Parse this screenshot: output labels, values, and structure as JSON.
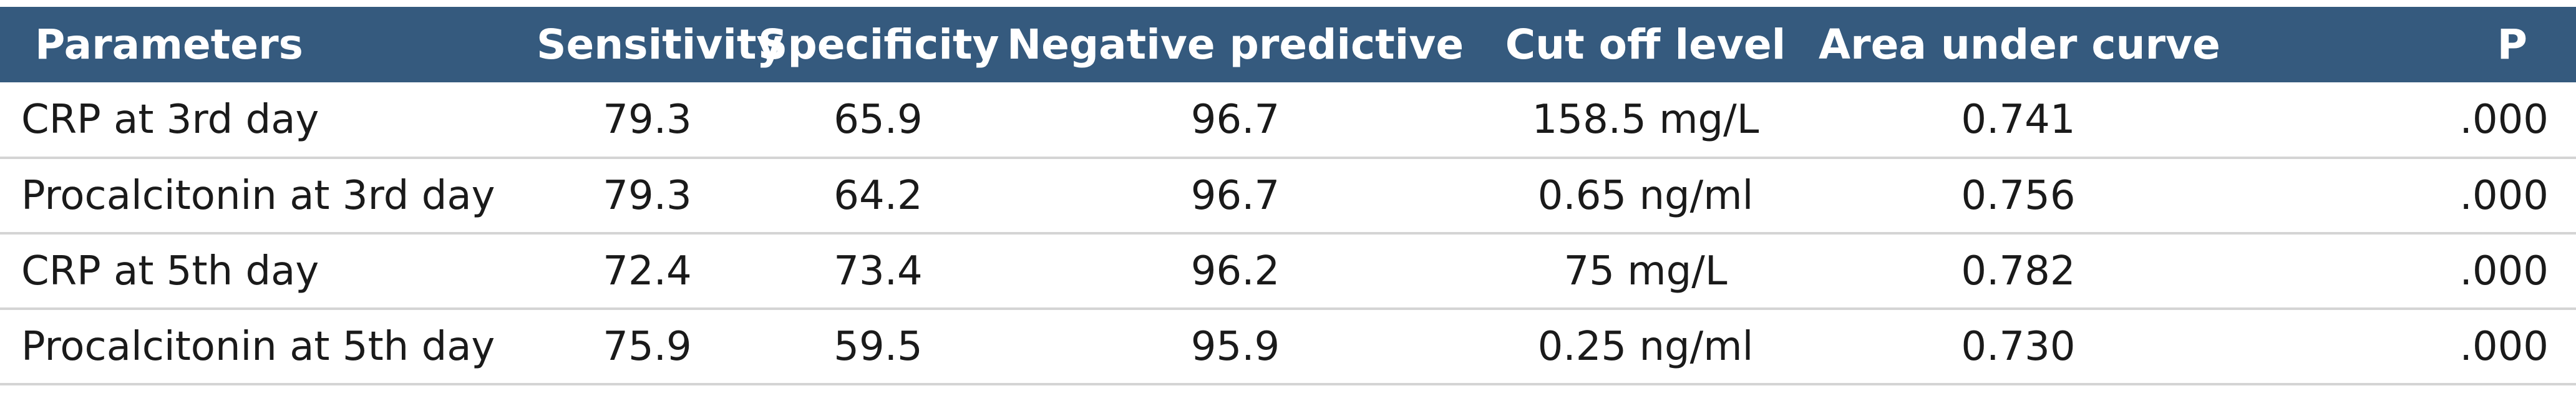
{
  "table": {
    "headers": [
      "Parameters",
      "Sensitivity",
      "Specificity",
      "Negative predictive",
      "Cut off level",
      "Area under curve",
      "P"
    ],
    "rows": [
      [
        "CRP at 3rd day",
        "79.3",
        "65.9",
        "96.7",
        "158.5 mg/L",
        "0.741",
        ".000"
      ],
      [
        "Procalcitonin at 3rd day",
        "79.3",
        "64.2",
        "96.7",
        "0.65 ng/ml",
        "0.756",
        ".000"
      ],
      [
        "CRP at 5th day",
        "72.4",
        "73.4",
        "96.2",
        "75 mg/L",
        "0.782",
        ".000"
      ],
      [
        "Procalcitonin at 5th day",
        "75.9",
        "59.5",
        "95.9",
        "0.25 ng/ml",
        "0.730",
        ".000"
      ]
    ]
  },
  "colors": {
    "header_background": "#355a7e",
    "header_text": "#ffffff",
    "row_divider": "#d4d4d4",
    "body_text": "#1a1a1a"
  }
}
